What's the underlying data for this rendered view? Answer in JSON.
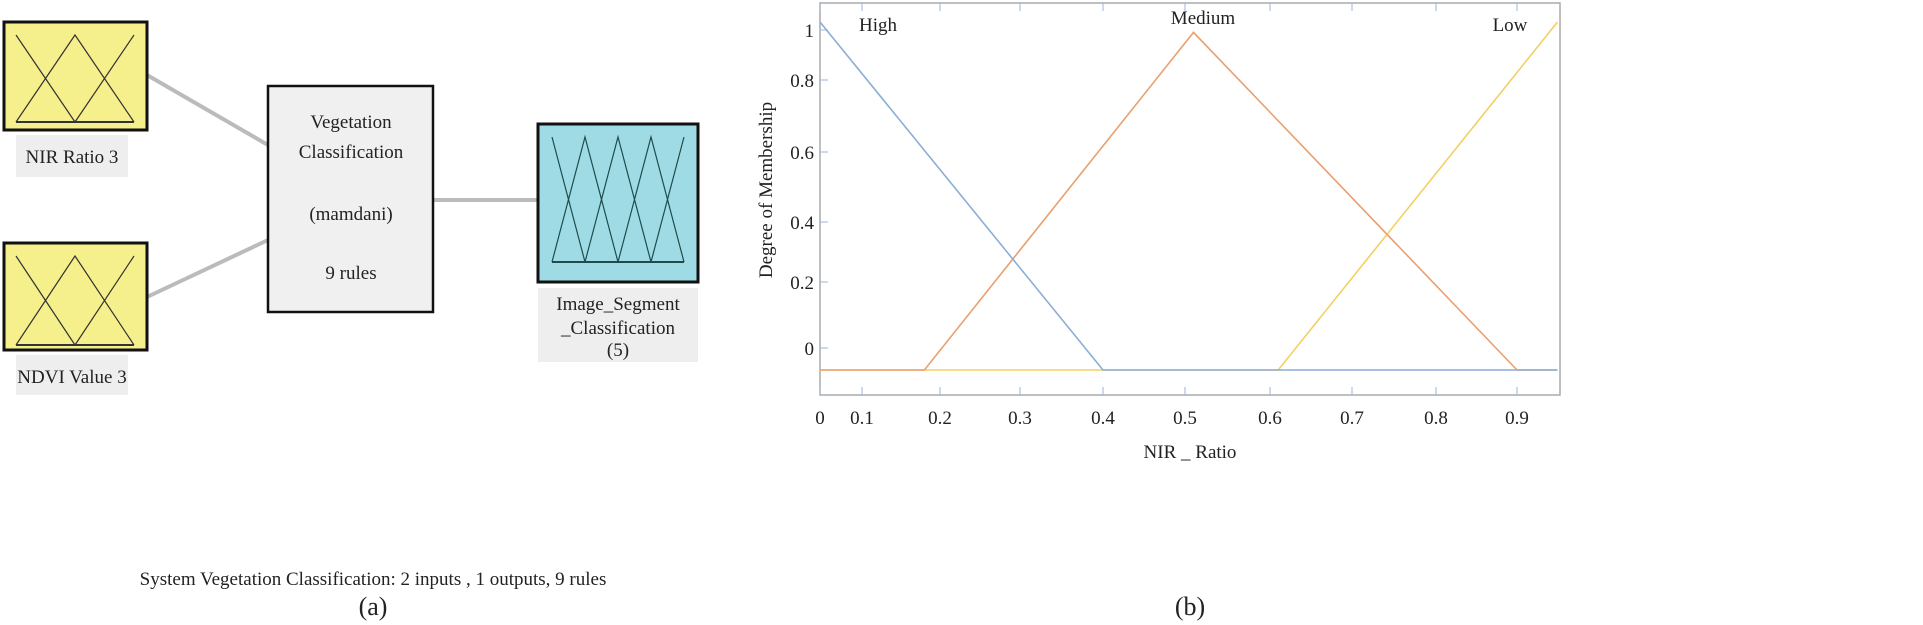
{
  "panel_a": {
    "inputs": [
      {
        "label": "NIR Ratio 3",
        "color": "#f6f08c"
      },
      {
        "label": "NDVI Value 3",
        "color": "#f6f08c"
      }
    ],
    "system": {
      "line1": "Vegetation",
      "line2": "Classification",
      "method": "(mamdani)",
      "rules": "9 rules"
    },
    "output": {
      "line1": "Image_Segment",
      "line2": "_Classification",
      "line3": "(5)",
      "color": "#9fdbe4"
    },
    "summary": "System Vegetation Classification: 2 inputs , 1 outputs, 9 rules",
    "caption": "(a)"
  },
  "panel_b": {
    "caption": "(b)"
  },
  "chart_data": {
    "type": "line",
    "xlabel": "NIR _ Ratio",
    "ylabel": "Degree of Membership",
    "x_ticks": [
      "0",
      "0.1",
      "0.2",
      "0.3",
      "0.4",
      "0.5",
      "0.6",
      "0.7",
      "0.8",
      "0.9"
    ],
    "y_ticks": [
      "0",
      "0.2",
      "0.4",
      "0.6",
      "0.8",
      "1"
    ],
    "xlim": [
      0,
      0.95
    ],
    "ylim": [
      0,
      1
    ],
    "grid": false,
    "series": [
      {
        "name": "Low",
        "color": "#f2d061",
        "points": [
          [
            0,
            0
          ],
          [
            0.61,
            0
          ],
          [
            0.95,
            1
          ]
        ]
      },
      {
        "name": "Medium",
        "color": "#e8a071",
        "points": [
          [
            0,
            0
          ],
          [
            0.18,
            0
          ],
          [
            0.51,
            0.97
          ],
          [
            0.9,
            0
          ],
          [
            0.95,
            0
          ]
        ]
      },
      {
        "name": "High",
        "color": "#8aaed6",
        "points": [
          [
            0,
            1
          ],
          [
            0.4,
            0
          ],
          [
            0.95,
            0
          ]
        ]
      }
    ]
  }
}
